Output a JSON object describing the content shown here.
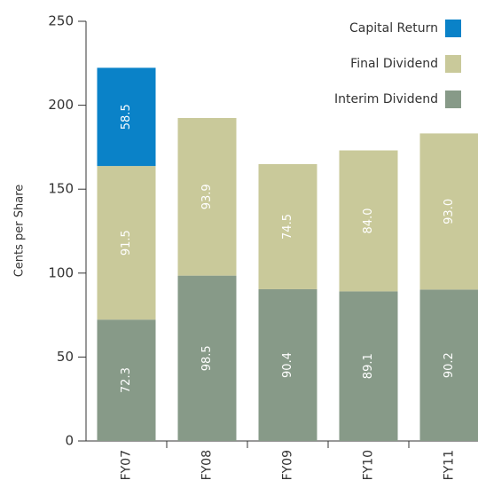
{
  "chart_data": {
    "type": "stacked_bar",
    "y_label": "Cents per Share",
    "categories": [
      "FY07",
      "FY08",
      "FY09",
      "FY10",
      "FY11"
    ],
    "series": [
      {
        "name": "Interim Dividend",
        "color": "#879a88",
        "values": [
          72.3,
          98.5,
          90.4,
          89.1,
          90.2
        ],
        "value_labels": [
          "72.3",
          "98.5",
          "90.4",
          "89.1",
          "90.2"
        ]
      },
      {
        "name": "Final Dividend",
        "color": "#c9c99a",
        "values": [
          91.5,
          93.9,
          74.5,
          84.0,
          93.0
        ],
        "value_labels": [
          "91.5",
          "93.9",
          "74.5",
          "84.0",
          "93.0"
        ]
      },
      {
        "name": "Capital Return",
        "color": "#0a82c8",
        "values": [
          58.5,
          null,
          null,
          null,
          null
        ],
        "value_labels": [
          "58.5",
          null,
          null,
          null,
          null
        ]
      }
    ],
    "ylim": [
      0,
      250
    ],
    "yticks": [
      0,
      50,
      100,
      150,
      200,
      250
    ],
    "legend": "top-right"
  }
}
